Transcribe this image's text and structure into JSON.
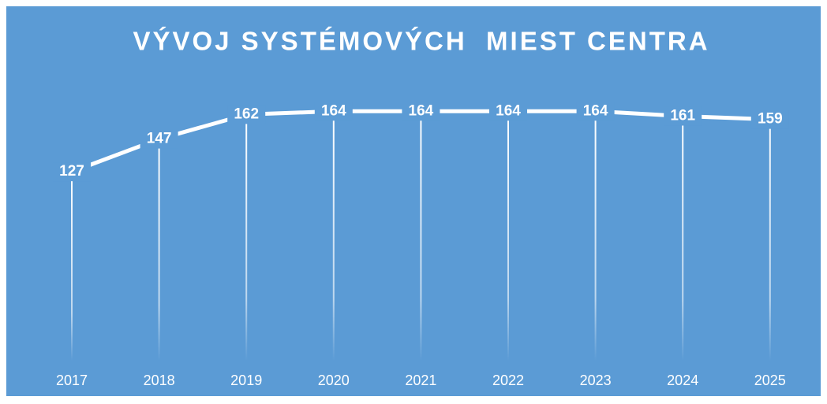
{
  "chart_data": {
    "type": "line",
    "title": "VÝVOJ SYSTÉMOVÝCH  MIEST CENTRA",
    "categories": [
      "2017",
      "2018",
      "2019",
      "2020",
      "2021",
      "2022",
      "2023",
      "2024",
      "2025"
    ],
    "values": [
      127,
      147,
      162,
      164,
      164,
      164,
      164,
      161,
      159
    ],
    "color": "#ffffff",
    "background": "#5b9bd5",
    "ylim": [
      0,
      180
    ],
    "drop_lines": true,
    "data_labels": true
  }
}
